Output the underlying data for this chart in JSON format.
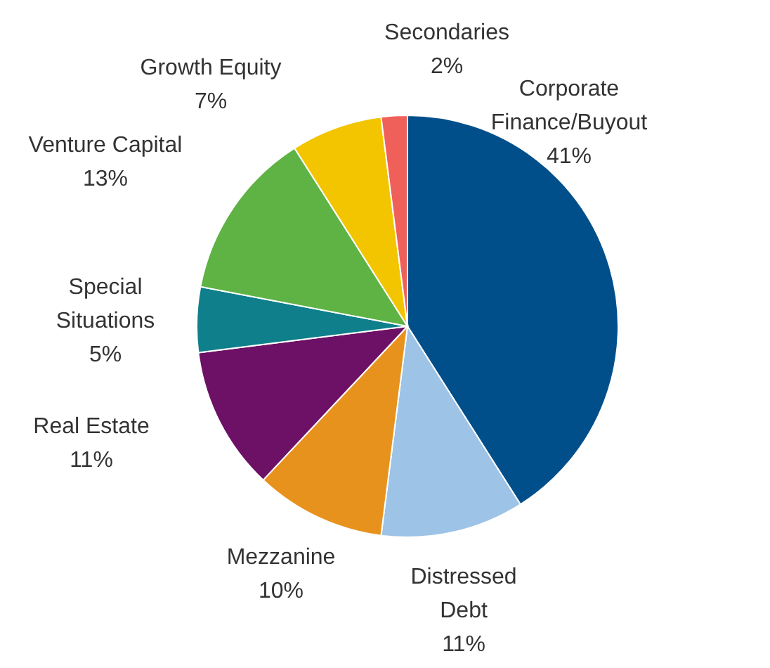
{
  "chart_data": {
    "type": "pie",
    "categories": [
      "Corporate Finance/Buyout",
      "Distressed Debt",
      "Mezzanine",
      "Real Estate",
      "Special Situations",
      "Venture Capital",
      "Growth Equity",
      "Secondaries"
    ],
    "values": [
      41,
      11,
      10,
      11,
      5,
      13,
      7,
      2
    ],
    "value_labels": [
      "41%",
      "11%",
      "10%",
      "11%",
      "5%",
      "13%",
      "7%",
      "2%"
    ],
    "colors": [
      "#004f8a",
      "#9dc3e6",
      "#e8921e",
      "#6c1165",
      "#107f8c",
      "#5eb344",
      "#f2c500",
      "#f0605a"
    ]
  }
}
